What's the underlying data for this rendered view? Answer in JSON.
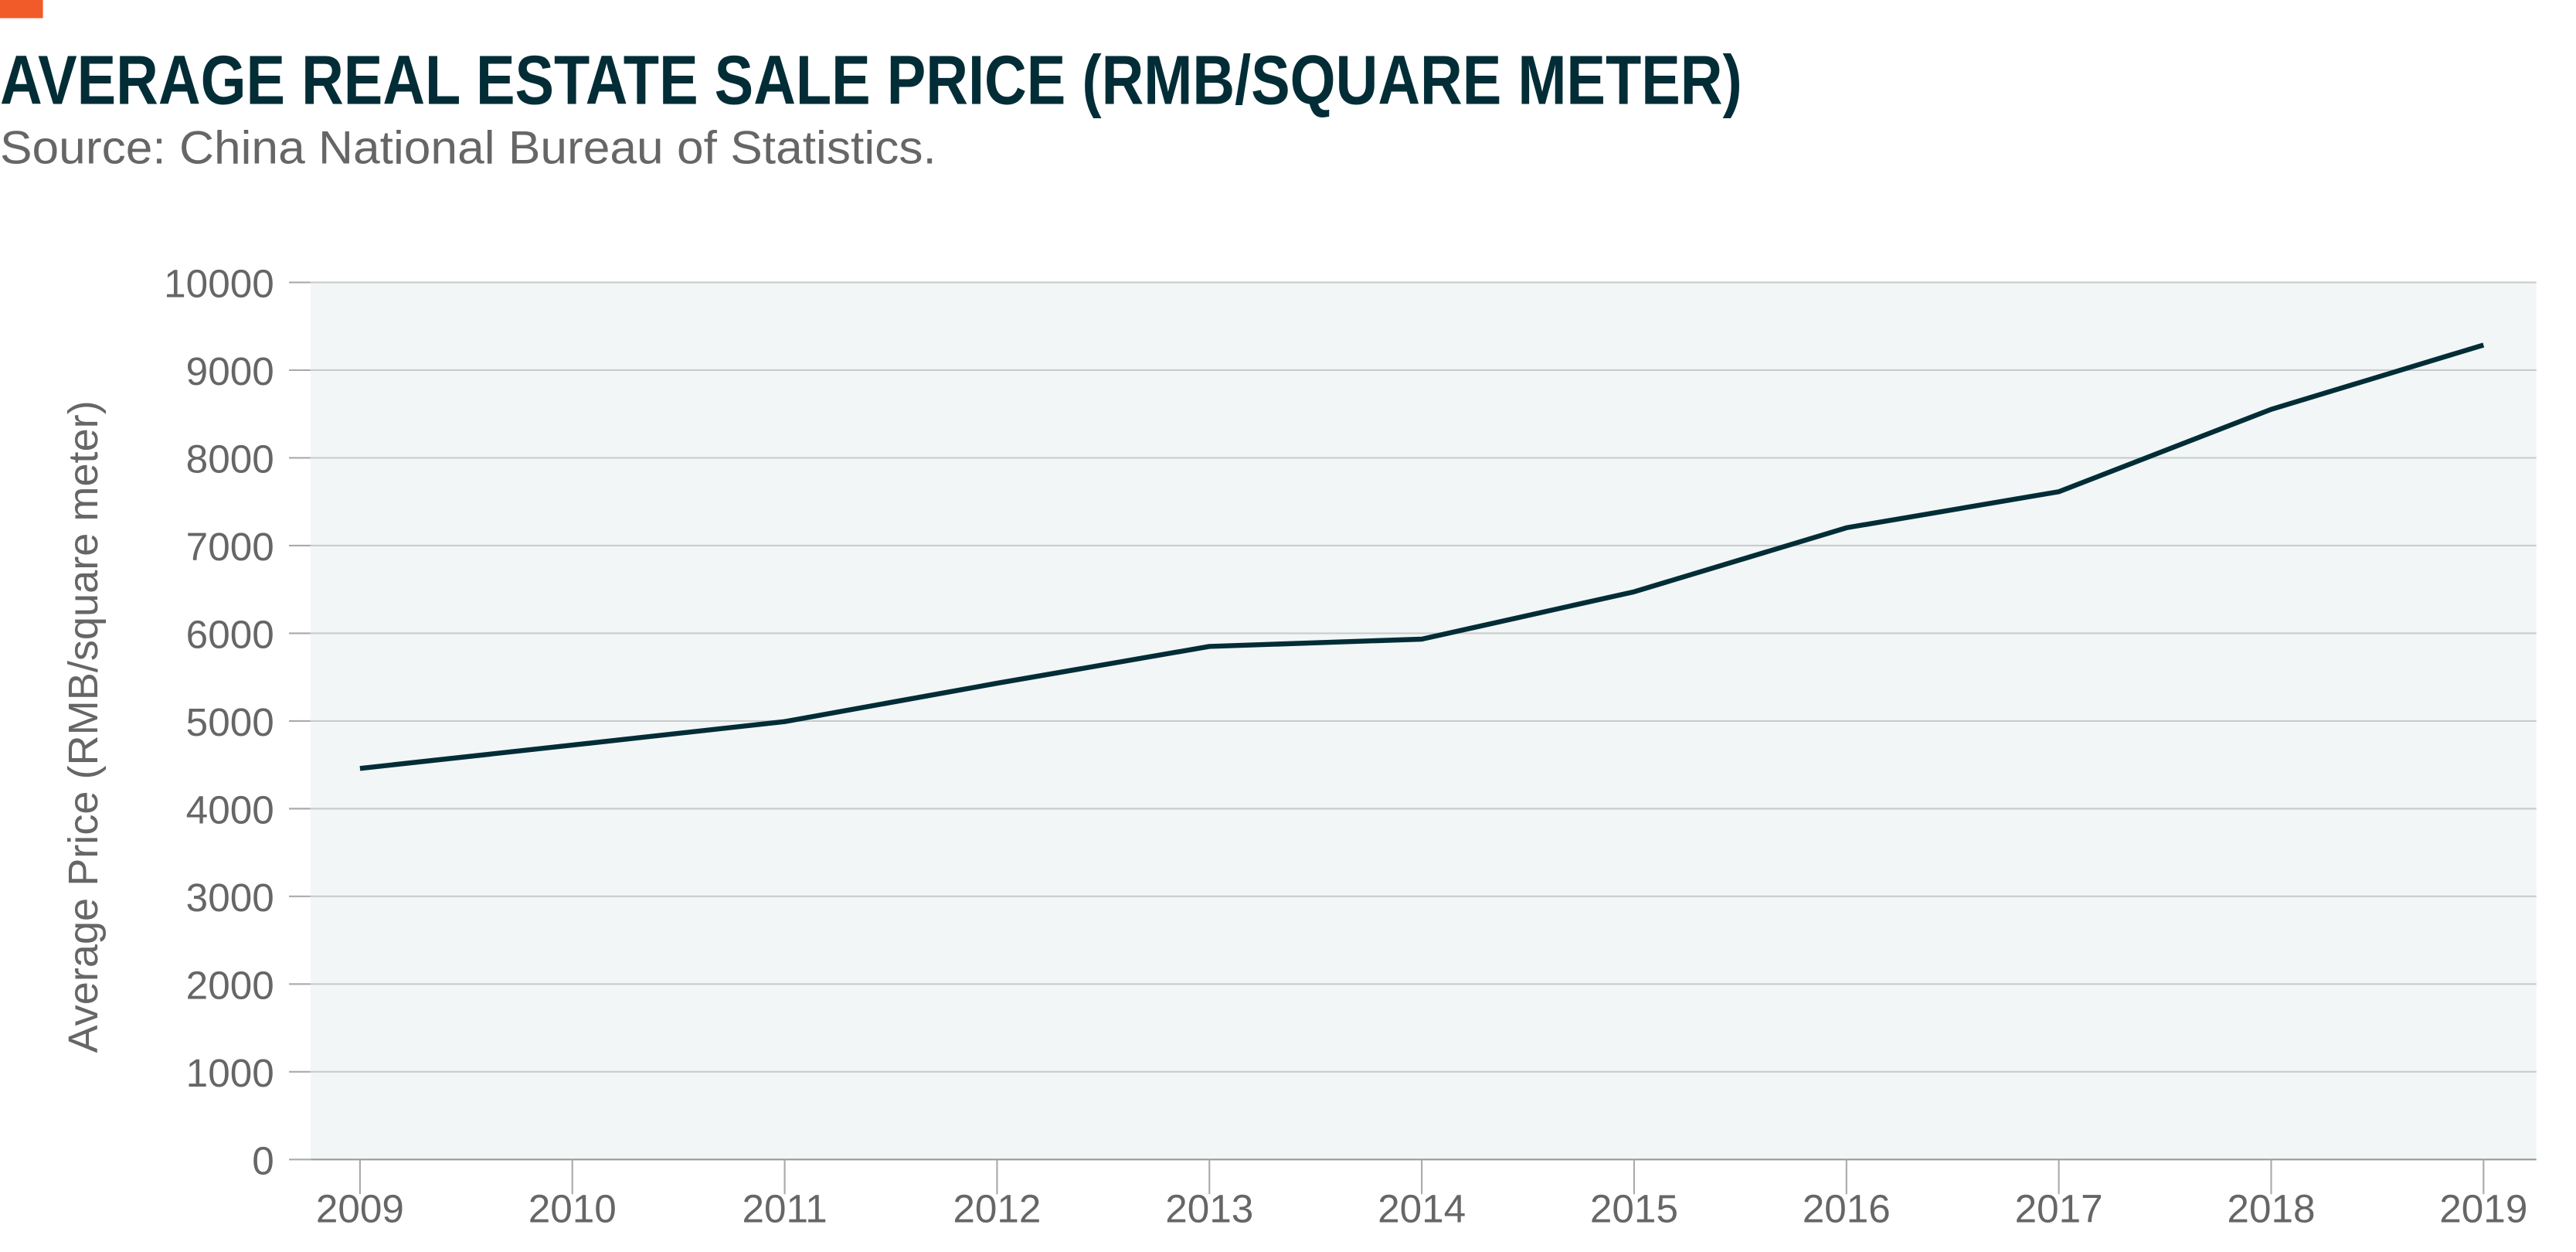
{
  "header": {
    "title": "AVERAGE REAL ESTATE SALE PRICE (RMB/SQUARE METER)",
    "subtitle": "Source: China National Bureau of Statistics."
  },
  "colors": {
    "accent": "#f15a29",
    "line": "#032d36",
    "plot_bg": "#f2f6f7",
    "grid": "#c8cccc",
    "text": "#666666"
  },
  "chart_data": {
    "type": "line",
    "title": "AVERAGE REAL ESTATE SALE PRICE (RMB/SQUARE METER)",
    "xlabel": "",
    "ylabel": "Average Price (RMB/square meter)",
    "x": [
      "2009",
      "2010",
      "2011",
      "2012",
      "2013",
      "2014",
      "2015",
      "2016",
      "2017",
      "2018",
      "2019"
    ],
    "series": [
      {
        "values": [
          4459,
          4725,
          4993,
          5430,
          5850,
          5933,
          6473,
          7203,
          7614,
          8553,
          9287
        ]
      }
    ],
    "ylim": [
      0,
      10000
    ],
    "yticks": [
      "0",
      "1000",
      "2000",
      "3000",
      "4000",
      "5000",
      "6000",
      "7000",
      "8000",
      "9000",
      "10000"
    ],
    "grid": true,
    "legend": "none"
  }
}
